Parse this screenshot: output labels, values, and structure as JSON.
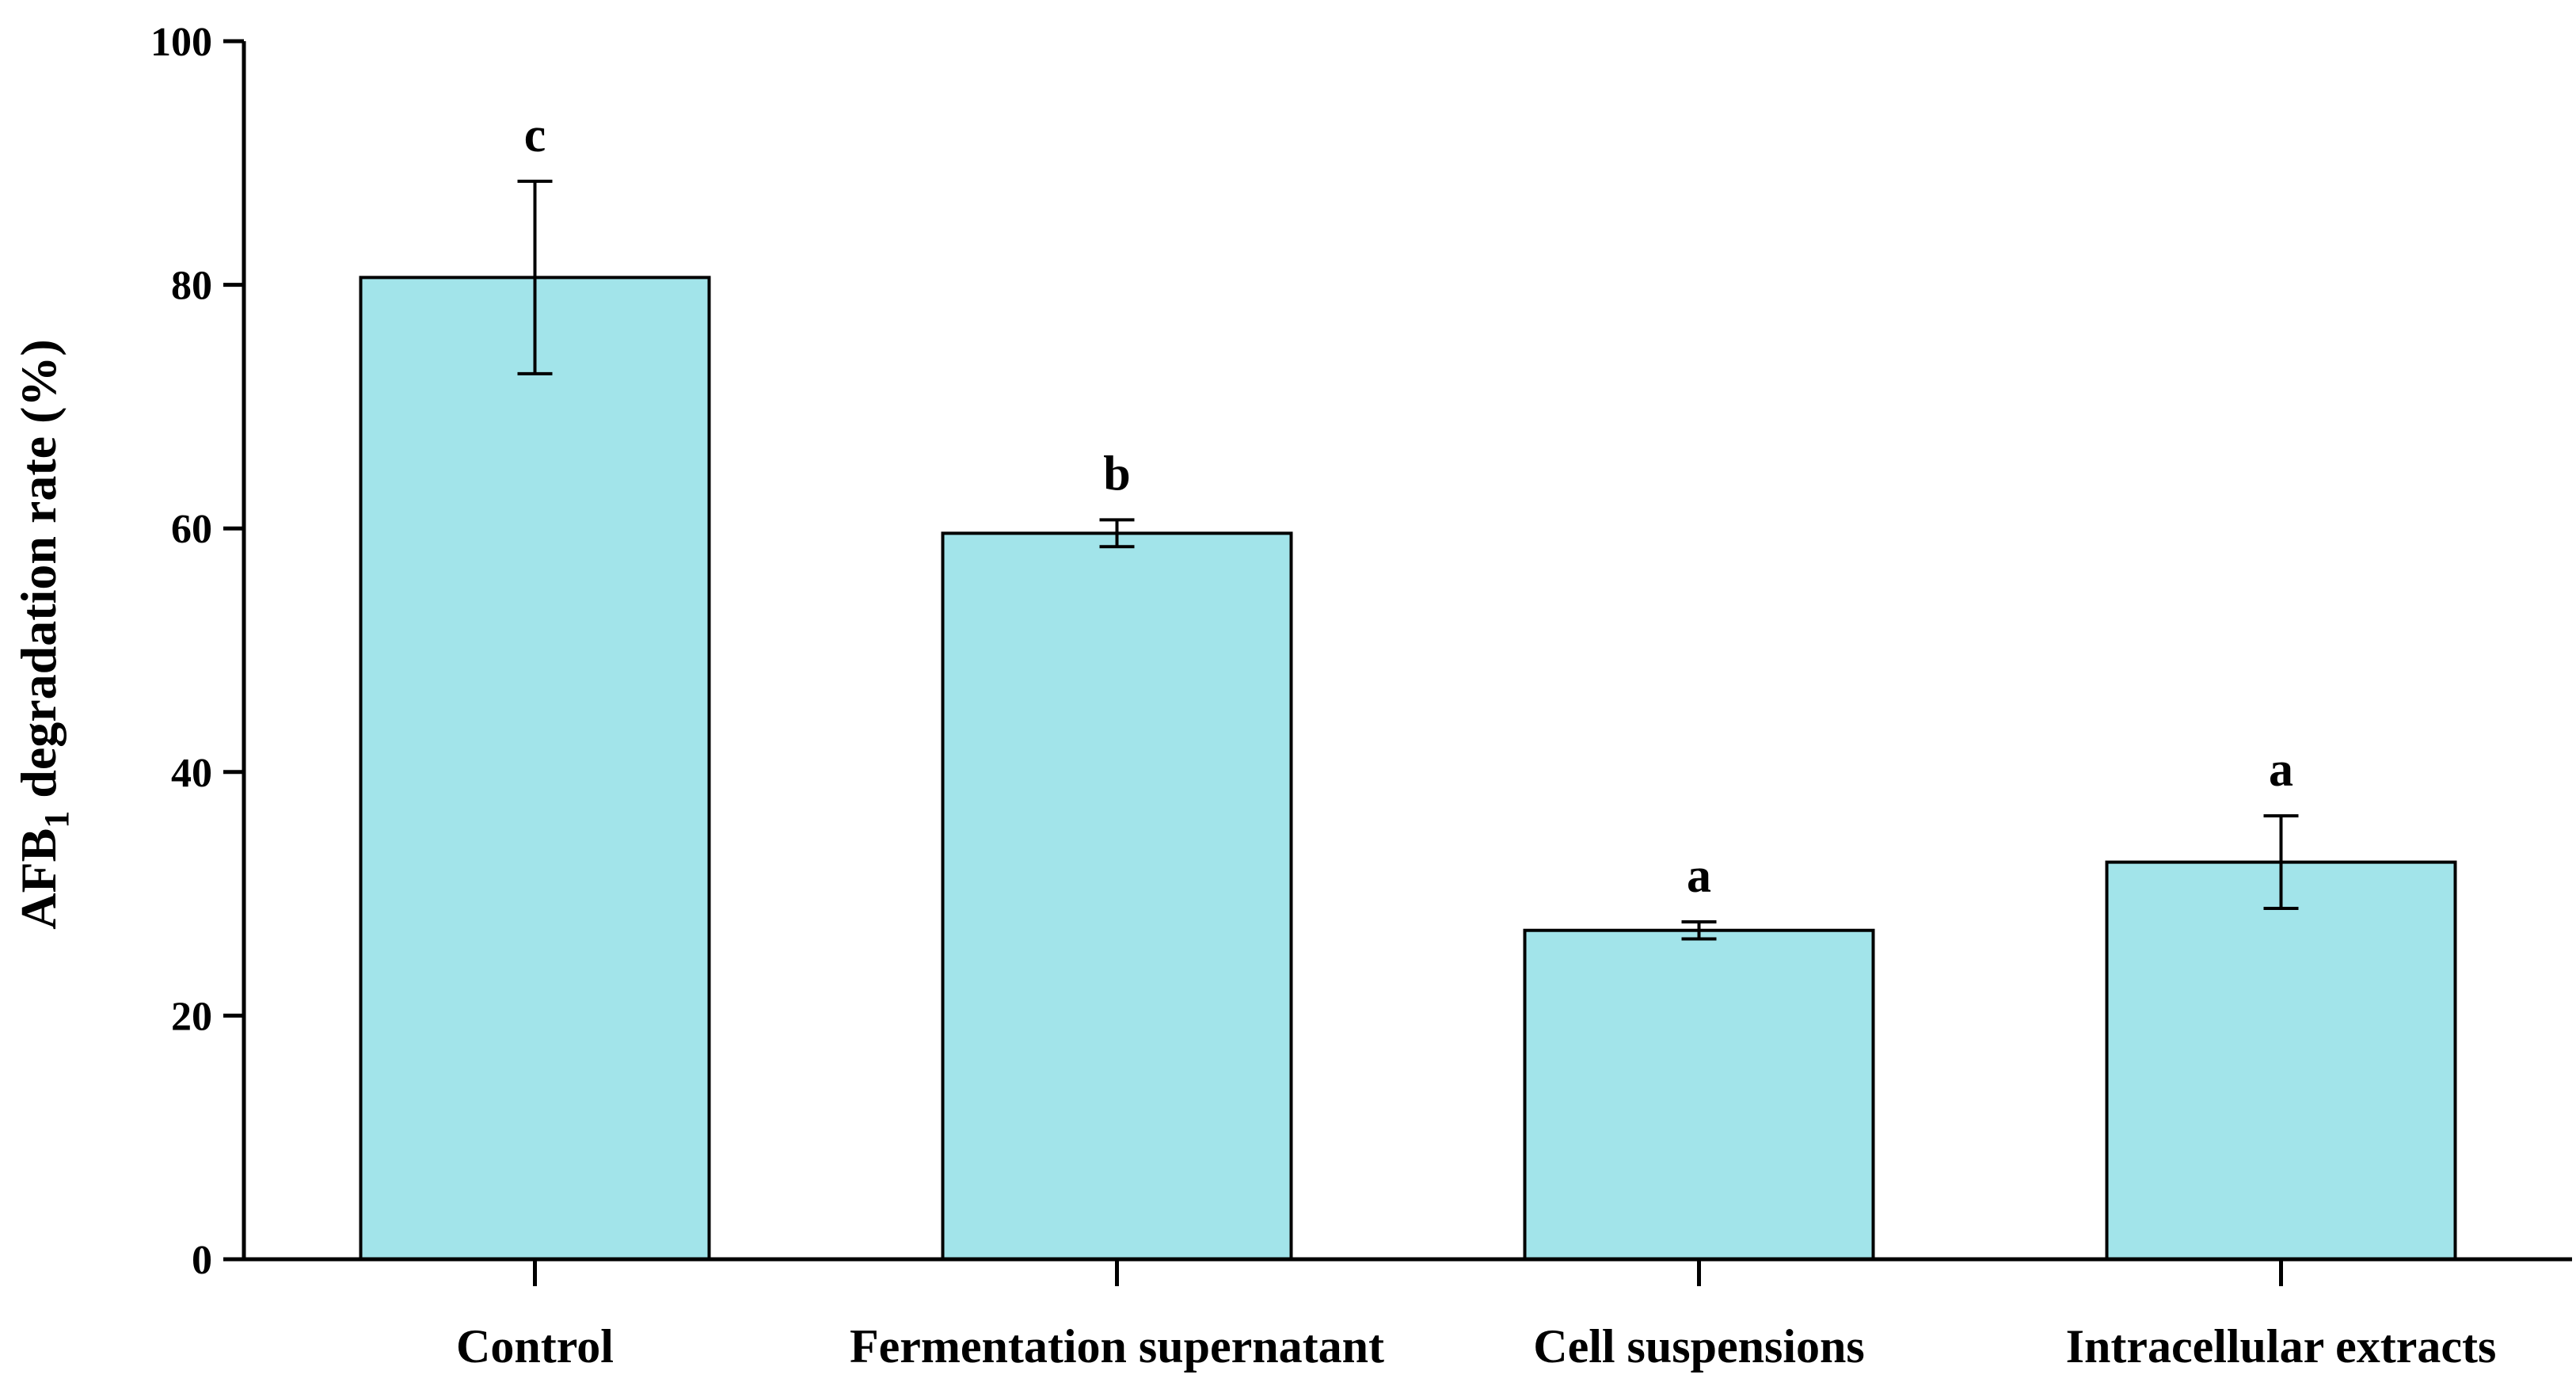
{
  "chart_data": {
    "type": "bar",
    "categories": [
      "Control",
      "Fermentation supernatant",
      "Cell suspensions",
      "Intracellular extracts"
    ],
    "values": [
      80.6,
      59.6,
      27.0,
      32.6
    ],
    "errors": [
      7.9,
      1.1,
      0.7,
      3.8
    ],
    "significance": [
      "c",
      "b",
      "a",
      "a"
    ],
    "ylabel": {
      "main": "AFB",
      "sub": "1",
      "rest": " degradation rate (%)"
    },
    "ylim": [
      0,
      100
    ],
    "yticks": [
      0,
      20,
      40,
      60,
      80,
      100
    ],
    "grid": false,
    "legend": "none",
    "colors": {
      "bar_fill": "#a2e4ea",
      "bar_stroke": "#000000",
      "axis": "#000000"
    }
  }
}
